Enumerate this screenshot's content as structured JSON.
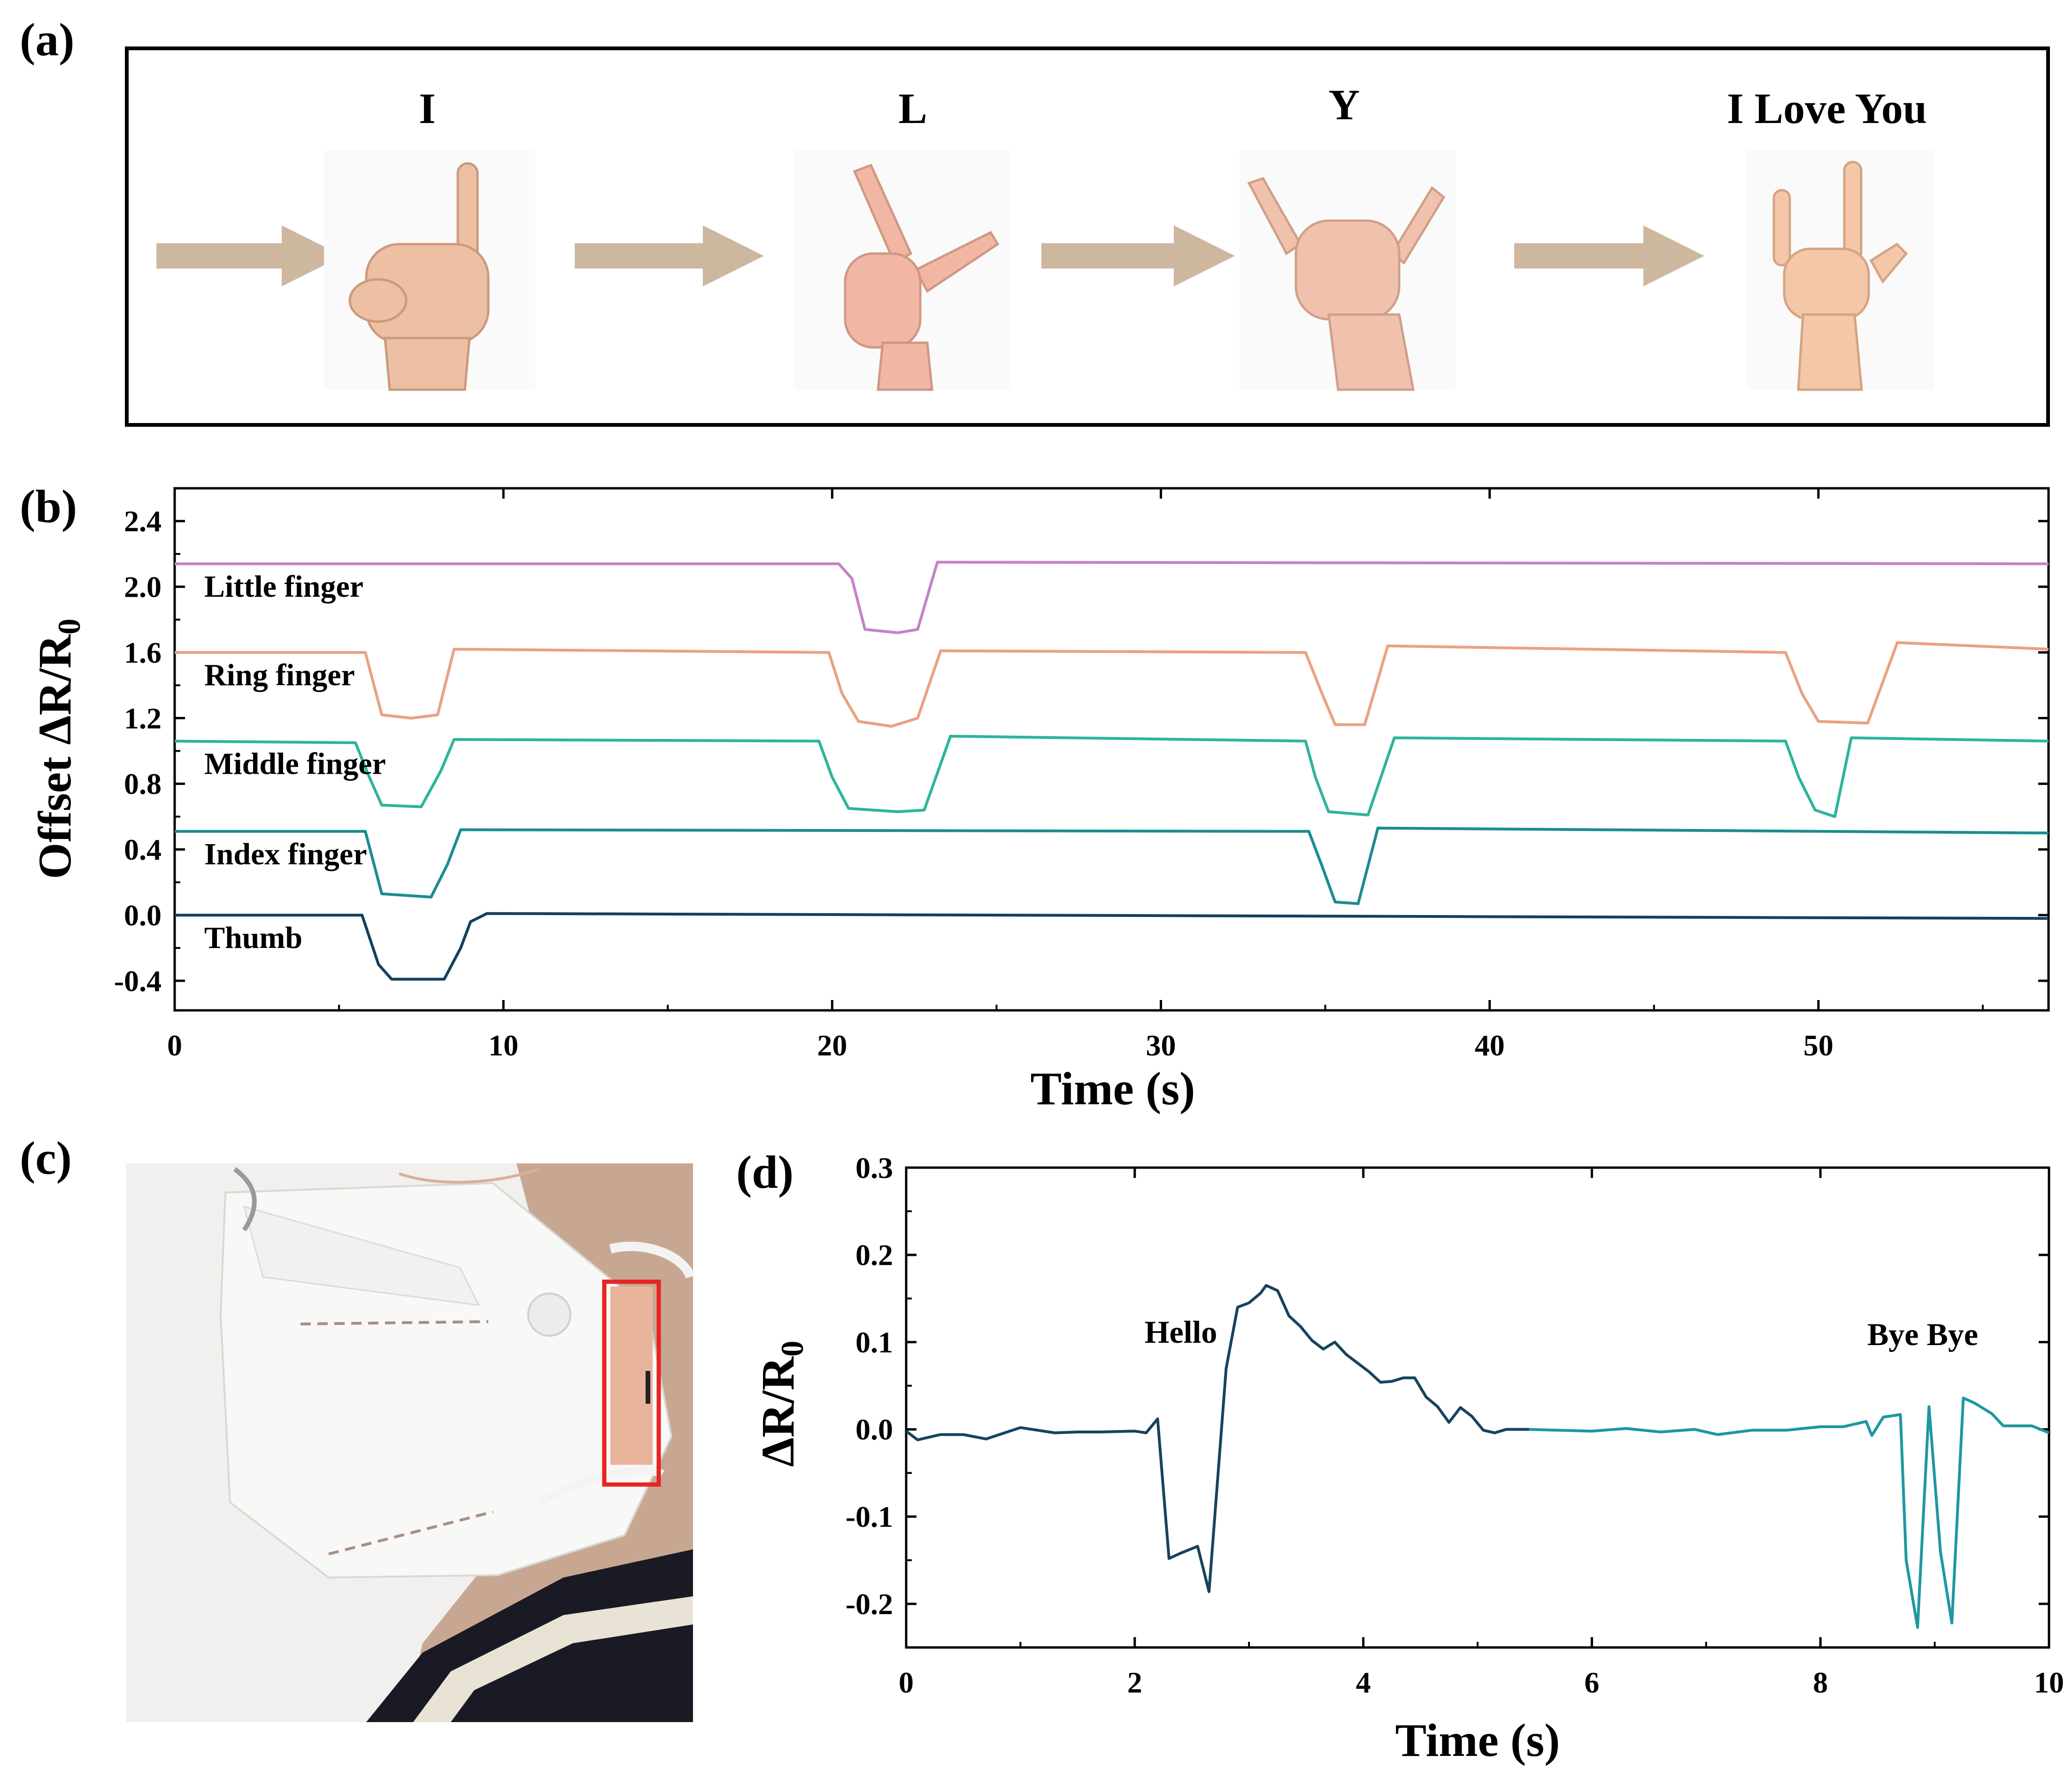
{
  "panels": {
    "a": {
      "label": "(a)",
      "captions": [
        "I",
        "L",
        "Y",
        "I Love You"
      ]
    },
    "b": {
      "label": "(b)"
    },
    "c": {
      "label": "(c)"
    },
    "d": {
      "label": "(d)"
    }
  },
  "colors": {
    "arrow": "#cdb89f",
    "little": "#c682c9",
    "ring": "#eaa27f",
    "middle": "#2db49d",
    "index": "#1b8c92",
    "thumb": "#153f5c",
    "d_dark": "#17435d",
    "d_light": "#1e97a2",
    "mask_box": "#e82323"
  },
  "chart_data": [
    {
      "type": "line",
      "panel": "b",
      "xlabel": "Time (s)",
      "ylabel": "Offset ΔR/R0",
      "xlim": [
        0,
        57
      ],
      "ylim": [
        -0.58,
        2.6
      ],
      "xticks": [
        0,
        10,
        20,
        30,
        40,
        50
      ],
      "yticks": [
        -0.4,
        0.0,
        0.4,
        0.8,
        1.2,
        1.6,
        2.0,
        2.4
      ],
      "ytick_labels": [
        "-0.4",
        "0.0",
        "0.4",
        "0.8",
        "1.2",
        "1.6",
        "2.0",
        "2.4"
      ],
      "series": [
        {
          "name": "Little finger",
          "color_key": "little",
          "x": [
            0,
            20.2,
            20.6,
            21.0,
            22.0,
            22.6,
            23.2,
            57
          ],
          "y": [
            2.14,
            2.14,
            2.05,
            1.74,
            1.72,
            1.74,
            2.15,
            2.14
          ]
        },
        {
          "name": "Ring finger",
          "color_key": "ring",
          "x": [
            0,
            5.8,
            6.3,
            7.2,
            8.0,
            8.5,
            19.9,
            20.3,
            20.8,
            21.8,
            22.6,
            23.3,
            34.4,
            34.9,
            35.3,
            36.2,
            36.9,
            49.0,
            49.5,
            50.0,
            51.5,
            52.4,
            57
          ],
          "y": [
            1.6,
            1.6,
            1.22,
            1.2,
            1.22,
            1.62,
            1.6,
            1.35,
            1.18,
            1.15,
            1.2,
            1.61,
            1.6,
            1.35,
            1.16,
            1.16,
            1.64,
            1.6,
            1.35,
            1.18,
            1.17,
            1.66,
            1.62
          ]
        },
        {
          "name": "Middle finger",
          "color_key": "middle",
          "x": [
            0,
            5.5,
            5.9,
            6.3,
            7.5,
            8.1,
            8.5,
            19.6,
            20.0,
            20.5,
            22.0,
            22.8,
            23.6,
            34.4,
            34.7,
            35.1,
            36.3,
            37.1,
            49.0,
            49.4,
            49.9,
            50.5,
            51.0,
            57
          ],
          "y": [
            1.06,
            1.05,
            0.85,
            0.67,
            0.66,
            0.88,
            1.07,
            1.06,
            0.84,
            0.65,
            0.63,
            0.64,
            1.09,
            1.06,
            0.84,
            0.63,
            0.61,
            1.08,
            1.06,
            0.84,
            0.64,
            0.6,
            1.08,
            1.06
          ]
        },
        {
          "name": "Index finger",
          "color_key": "index",
          "x": [
            0,
            5.8,
            6.3,
            7.8,
            8.3,
            8.7,
            34.5,
            34.9,
            35.3,
            36.0,
            36.6,
            57
          ],
          "y": [
            0.51,
            0.51,
            0.13,
            0.11,
            0.31,
            0.52,
            0.51,
            0.3,
            0.08,
            0.07,
            0.53,
            0.5
          ]
        },
        {
          "name": "Thumb",
          "color_key": "thumb",
          "x": [
            0,
            5.7,
            6.2,
            6.6,
            8.2,
            8.7,
            9.0,
            9.5,
            57
          ],
          "y": [
            0.0,
            0.0,
            -0.3,
            -0.39,
            -0.39,
            -0.2,
            -0.04,
            0.01,
            -0.02
          ]
        }
      ]
    },
    {
      "type": "line",
      "panel": "d",
      "xlabel": "Time (s)",
      "ylabel": "ΔR/R0",
      "xlim": [
        0,
        10
      ],
      "ylim": [
        -0.25,
        0.3
      ],
      "xticks": [
        0,
        2,
        4,
        6,
        8,
        10
      ],
      "yticks": [
        -0.2,
        -0.1,
        0.0,
        0.1,
        0.2,
        0.3
      ],
      "ytick_labels": [
        "-0.2",
        "-0.1",
        "0.0",
        "0.1",
        "0.2",
        "0.3"
      ],
      "annotations": [
        "Hello",
        "Bye Bye"
      ],
      "series": [
        {
          "color_key": "d_dark",
          "x": [
            0,
            0.1,
            0.3,
            0.5,
            0.7,
            1.0,
            1.3,
            1.5,
            1.7,
            2.0,
            2.1,
            2.2,
            2.3,
            2.4,
            2.55,
            2.65,
            2.8,
            2.9,
            3.0,
            3.1,
            3.15,
            3.25,
            3.35,
            3.45,
            3.55,
            3.65,
            3.75,
            3.85,
            3.95,
            4.05,
            4.15,
            4.25,
            4.35,
            4.45,
            4.55,
            4.65,
            4.75,
            4.85,
            4.95,
            5.05,
            5.15,
            5.25,
            5.35,
            5.45
          ],
          "y": [
            -0.002,
            -0.012,
            -0.006,
            -0.006,
            -0.011,
            0.002,
            -0.004,
            -0.003,
            -0.003,
            -0.002,
            -0.004,
            0.012,
            -0.148,
            -0.142,
            -0.134,
            -0.186,
            0.07,
            0.14,
            0.145,
            0.156,
            0.165,
            0.159,
            0.13,
            0.118,
            0.102,
            0.092,
            0.1,
            0.086,
            0.076,
            0.066,
            0.054,
            0.055,
            0.059,
            0.059,
            0.037,
            0.026,
            0.008,
            0.025,
            0.015,
            -0.001,
            -0.004,
            0.0,
            0.0,
            0.0
          ]
        },
        {
          "color_key": "d_light",
          "x": [
            5.45,
            5.7,
            6.0,
            6.3,
            6.6,
            6.9,
            7.1,
            7.4,
            7.7,
            8.0,
            8.2,
            8.4,
            8.45,
            8.55,
            8.7,
            8.75,
            8.85,
            8.95,
            9.05,
            9.15,
            9.25,
            9.35,
            9.5,
            9.6,
            9.7,
            9.85,
            10
          ],
          "y": [
            0.0,
            -0.001,
            -0.002,
            0.001,
            -0.003,
            0.0,
            -0.006,
            -0.001,
            -0.001,
            0.003,
            0.003,
            0.009,
            -0.007,
            0.014,
            0.017,
            -0.15,
            -0.227,
            0.026,
            -0.14,
            -0.222,
            0.036,
            0.03,
            0.018,
            0.004,
            0.004,
            0.004,
            -0.004
          ]
        }
      ]
    }
  ]
}
